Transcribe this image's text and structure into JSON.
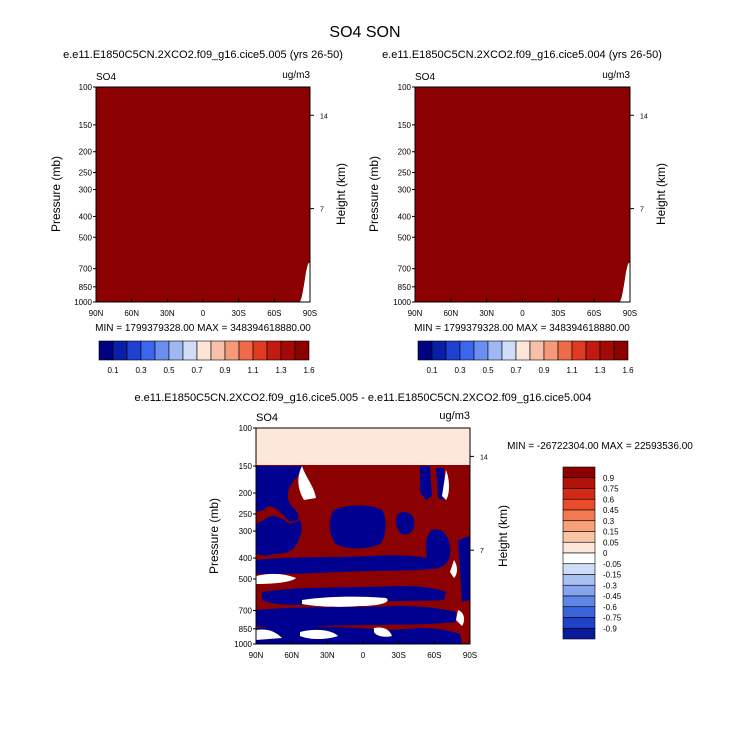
{
  "main_title": "SO4 SON",
  "chart_data": [
    {
      "type": "heatmap",
      "id": "panel1",
      "title": "e.e11.E1850C5CN.2XCO2.f09_g16.cice5.005 (yrs 26-50)",
      "left_label": "SO4",
      "right_label": "ug/m3",
      "xlabel": "",
      "ylabel": "Pressure (mb)",
      "ylabel_right": "Height (km)",
      "xticks": [
        "90N",
        "60N",
        "30N",
        "0",
        "30S",
        "60S",
        "90S"
      ],
      "yticks": [
        "100",
        "150",
        "200",
        "250",
        "300",
        "400",
        "500",
        "700",
        "850",
        "1000"
      ],
      "yticks_right": [
        "14",
        "7"
      ],
      "fill_note": "field nearly all above 1.6 (darkest red); white notch near 90S, 700-1000 mb",
      "stats": "MIN = 1799379328.00  MAX = 348394618880.00"
    },
    {
      "type": "heatmap",
      "id": "panel2",
      "title": "e.e11.E1850C5CN.2XCO2.f09_g16.cice5.004 (yrs 26-50)",
      "left_label": "SO4",
      "right_label": "ug/m3",
      "xlabel": "",
      "ylabel": "Pressure (mb)",
      "ylabel_right": "Height (km)",
      "xticks": [
        "90N",
        "60N",
        "30N",
        "0",
        "30S",
        "60S",
        "90S"
      ],
      "yticks": [
        "100",
        "150",
        "200",
        "250",
        "300",
        "400",
        "500",
        "700",
        "850",
        "1000"
      ],
      "yticks_right": [
        "14",
        "7"
      ],
      "fill_note": "field nearly all above 1.6 (darkest red); white notch near 90S, 700-1000 mb",
      "stats": "MIN = 1799379328.00  MAX = 348394618880.00"
    },
    {
      "type": "heatmap",
      "id": "panel3",
      "title": "e.e11.E1850C5CN.2XCO2.f09_g16.cice5.005 - e.e11.E1850C5CN.2XCO2.f09_g16.cice5.004",
      "left_label": "SO4",
      "right_label": "ug/m3",
      "xlabel": "",
      "ylabel": "Pressure (mb)",
      "ylabel_right": "Height (km)",
      "xticks": [
        "90N",
        "60N",
        "30N",
        "0",
        "30S",
        "60S",
        "90S"
      ],
      "yticks": [
        "100",
        "150",
        "200",
        "250",
        "300",
        "400",
        "500",
        "700",
        "850",
        "1000"
      ],
      "yticks_right": [
        "14",
        "7"
      ],
      "fill_note": "difference field: near-zero (pale) band 100-150 mb; alternating dark red / dark blue layers below",
      "stats": "MIN = -26722304.00  MAX = 22593536.00"
    }
  ],
  "colorbar_top": {
    "labels": [
      "0.1",
      "0.3",
      "0.5",
      "0.7",
      "0.9",
      "1.1",
      "1.3",
      "1.6"
    ],
    "colors": [
      "#000080",
      "#0a1fa8",
      "#1f40d0",
      "#3d66ee",
      "#6b8ff0",
      "#9fb8f4",
      "#d0dcf8",
      "#fde5d8",
      "#f8c0a8",
      "#f59a78",
      "#ef6a48",
      "#e03a22",
      "#c21a10",
      "#a30a06",
      "#8b0000"
    ]
  },
  "colorbar_diff": {
    "labels": [
      "0.9",
      "0.75",
      "0.6",
      "0.45",
      "0.3",
      "0.15",
      "0.05",
      "0",
      "-0.05",
      "-0.15",
      "-0.3",
      "-0.45",
      "-0.6",
      "-0.75",
      "-0.9"
    ],
    "colors": [
      "#8b0000",
      "#b21208",
      "#d22a14",
      "#e84c2a",
      "#f27a52",
      "#f7a07a",
      "#fac6a8",
      "#fde6da",
      "#ffffff",
      "#cfdcf7",
      "#a9c0f3",
      "#85a4ee",
      "#5f85e6",
      "#3a63dc",
      "#1f42c6",
      "#0a1a9a"
    ]
  }
}
